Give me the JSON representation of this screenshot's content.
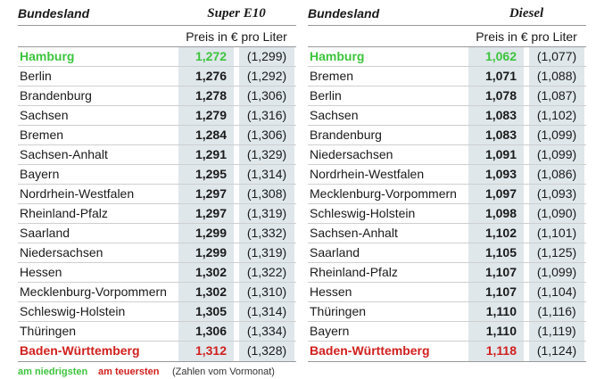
{
  "tables": [
    {
      "header": {
        "region": "Bundesland",
        "fuel": "Super E10",
        "unit": "Preis in € pro Liter"
      },
      "rows": [
        [
          "Hamburg",
          "1,272",
          "(1,299)"
        ],
        [
          "Berlin",
          "1,276",
          "(1,292)"
        ],
        [
          "Brandenburg",
          "1,278",
          "(1,306)"
        ],
        [
          "Sachsen",
          "1,279",
          "(1,316)"
        ],
        [
          "Bremen",
          "1,284",
          "(1,306)"
        ],
        [
          "Sachsen-Anhalt",
          "1,291",
          "(1,329)"
        ],
        [
          "Bayern",
          "1,295",
          "(1,314)"
        ],
        [
          "Nordrhein-Westfalen",
          "1,297",
          "(1,308)"
        ],
        [
          "Rheinland-Pfalz",
          "1,297",
          "(1,319)"
        ],
        [
          "Saarland",
          "1,299",
          "(1,332)"
        ],
        [
          "Niedersachsen",
          "1,299",
          "(1,319)"
        ],
        [
          "Hessen",
          "1,302",
          "(1,322)"
        ],
        [
          "Mecklenburg-Vorpommern",
          "1,302",
          "(1,310)"
        ],
        [
          "Schleswig-Holstein",
          "1,305",
          "(1,314)"
        ],
        [
          "Thüringen",
          "1,306",
          "(1,334)"
        ],
        [
          "Baden-Württemberg",
          "1,312",
          "(1,328)"
        ]
      ]
    },
    {
      "header": {
        "region": "Bundesland",
        "fuel": "Diesel",
        "unit": "Preis in € pro Liter"
      },
      "rows": [
        [
          "Hamburg",
          "1,062",
          "(1,077)"
        ],
        [
          "Bremen",
          "1,071",
          "(1,088)"
        ],
        [
          "Berlin",
          "1,078",
          "(1,087)"
        ],
        [
          "Sachsen",
          "1,083",
          "(1,102)"
        ],
        [
          "Brandenburg",
          "1,083",
          "(1,099)"
        ],
        [
          "Niedersachsen",
          "1,091",
          "(1,099)"
        ],
        [
          "Nordrhein-Westfalen",
          "1,093",
          "(1,086)"
        ],
        [
          "Mecklenburg-Vorpommern",
          "1,097",
          "(1,093)"
        ],
        [
          "Schleswig-Holstein",
          "1,098",
          "(1,090)"
        ],
        [
          "Sachsen-Anhalt",
          "1,102",
          "(1,101)"
        ],
        [
          "Saarland",
          "1,105",
          "(1,125)"
        ],
        [
          "Rheinland-Pfalz",
          "1,107",
          "(1,099)"
        ],
        [
          "Hessen",
          "1,107",
          "(1,104)"
        ],
        [
          "Thüringen",
          "1,110",
          "(1,116)"
        ],
        [
          "Bayern",
          "1,110",
          "(1,119)"
        ],
        [
          "Baden-Württemberg",
          "1,118",
          "(1,124)"
        ]
      ]
    }
  ],
  "legend": {
    "lowest": "am niedrigsten",
    "highest": "am teuersten",
    "note": "(Zahlen vom Vormonat)"
  }
}
